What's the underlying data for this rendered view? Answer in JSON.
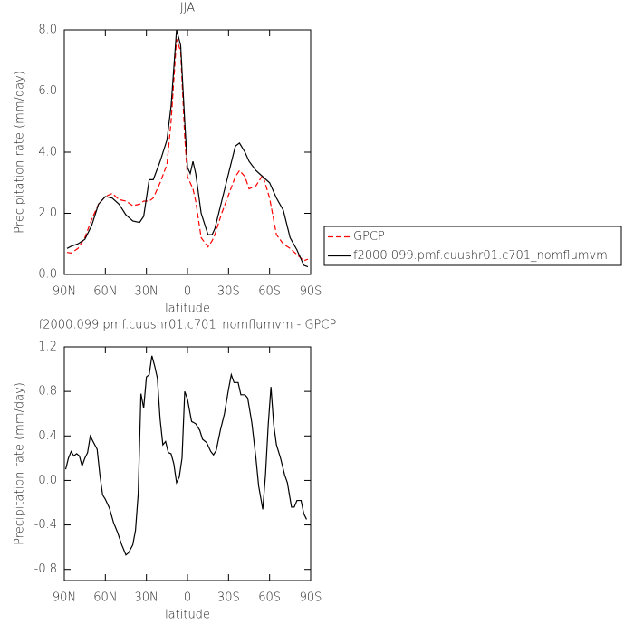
{
  "chart_data": [
    {
      "type": "line",
      "title": "JJA",
      "x_label": "latitude",
      "y_label": "Precipitation rate (mm/day)",
      "xlim": [
        90,
        -90
      ],
      "xticks": [
        {
          "value": 90,
          "label": "90N"
        },
        {
          "value": 60,
          "label": "60N"
        },
        {
          "value": 30,
          "label": "30N"
        },
        0,
        {
          "value": -30,
          "label": "30S"
        },
        {
          "value": -60,
          "label": "60S"
        },
        {
          "value": -90,
          "label": "90S"
        }
      ],
      "ylim": [
        0,
        8
      ],
      "yticks": [
        {
          "value": 0,
          "label": "0.0"
        },
        {
          "value": 2,
          "label": "2.0"
        },
        {
          "value": 4,
          "label": "4.0"
        },
        {
          "value": 6,
          "label": "6.0"
        },
        {
          "value": 8,
          "label": "8.0"
        }
      ],
      "legend": "right",
      "x": [
        88,
        85,
        80,
        75,
        70,
        65,
        60,
        55,
        50,
        45,
        40,
        35,
        32,
        28,
        25,
        20,
        15,
        12,
        8,
        5,
        2,
        0,
        -2,
        -4,
        -6,
        -10,
        -15,
        -18,
        -20,
        -25,
        -30,
        -35,
        -38,
        -42,
        -45,
        -50,
        -55,
        -60,
        -65,
        -70,
        -75,
        -80,
        -85,
        -88
      ],
      "series": [
        {
          "name": "GPCP",
          "color": "#ff0000",
          "line_style": "dashed",
          "values": [
            0.72,
            0.7,
            0.85,
            1.2,
            1.8,
            2.3,
            2.55,
            2.65,
            2.45,
            2.4,
            2.25,
            2.3,
            2.4,
            2.4,
            2.5,
            3.0,
            3.6,
            5.0,
            7.7,
            7.3,
            4.5,
            3.2,
            3.0,
            2.8,
            2.4,
            1.2,
            0.9,
            1.1,
            1.3,
            2.0,
            2.6,
            3.2,
            3.4,
            3.2,
            2.8,
            2.9,
            3.25,
            2.5,
            1.3,
            1.0,
            0.85,
            0.65,
            0.45,
            0.5
          ]
        },
        {
          "name": "f2000.099.pmf.cuushr01.c701_nomflumvm",
          "color": "#000000",
          "line_style": "solid",
          "values": [
            0.85,
            0.92,
            1.0,
            1.15,
            1.6,
            2.3,
            2.55,
            2.5,
            2.3,
            1.95,
            1.75,
            1.7,
            1.9,
            3.1,
            3.1,
            3.7,
            4.4,
            5.5,
            8.0,
            7.5,
            5.0,
            3.5,
            3.3,
            3.7,
            3.3,
            2.0,
            1.3,
            1.3,
            1.5,
            2.4,
            3.3,
            4.2,
            4.3,
            4.0,
            3.7,
            3.4,
            3.2,
            3.0,
            2.5,
            2.1,
            1.2,
            0.8,
            0.3,
            0.25
          ]
        }
      ]
    },
    {
      "type": "line",
      "title": "f2000.099.pmf.cuushr01.c701_nomflumvm - GPCP",
      "x_label": "latitude",
      "y_label": "Precipitation rate (mm/day)",
      "xlim": [
        90,
        -90
      ],
      "xticks": [
        {
          "value": 90,
          "label": "90N"
        },
        {
          "value": 60,
          "label": "60N"
        },
        {
          "value": 30,
          "label": "30N"
        },
        0,
        {
          "value": -30,
          "label": "30S"
        },
        {
          "value": -60,
          "label": "60S"
        },
        {
          "value": -90,
          "label": "90S"
        }
      ],
      "ylim": [
        -0.9,
        1.2
      ],
      "yticks": [
        {
          "value": -0.8,
          "label": "-0.8"
        },
        {
          "value": -0.4,
          "label": "-0.4"
        },
        {
          "value": 0,
          "label": "0.0"
        },
        {
          "value": 0.4,
          "label": "0.4"
        },
        {
          "value": 0.8,
          "label": "0.8"
        },
        {
          "value": 1.2,
          "label": "1.2"
        }
      ],
      "color": "#000000",
      "x": [
        89,
        87,
        85,
        83,
        81,
        79,
        77,
        75,
        73,
        71,
        69,
        66,
        64,
        62,
        60,
        57,
        54,
        51,
        48,
        45,
        43,
        40,
        38,
        36,
        34,
        32,
        30,
        28,
        26,
        24,
        22,
        20,
        18,
        16,
        14,
        12,
        10,
        8,
        6,
        4,
        2,
        0,
        -3,
        -6,
        -9,
        -11,
        -14,
        -17,
        -19,
        -21,
        -24,
        -27,
        -30,
        -32,
        -34,
        -37,
        -39,
        -42,
        -44,
        -47,
        -50,
        -52,
        -55,
        -57,
        -59,
        -61,
        -63,
        -65,
        -68,
        -71,
        -73,
        -76,
        -78,
        -80,
        -83,
        -85,
        -87
      ],
      "values": [
        0.1,
        0.2,
        0.26,
        0.22,
        0.24,
        0.22,
        0.13,
        0.2,
        0.25,
        0.4,
        0.35,
        0.28,
        0.05,
        -0.13,
        -0.17,
        -0.25,
        -0.38,
        -0.47,
        -0.58,
        -0.67,
        -0.65,
        -0.58,
        -0.45,
        -0.12,
        0.78,
        0.65,
        0.93,
        0.95,
        1.12,
        1.03,
        0.92,
        0.55,
        0.32,
        0.35,
        0.25,
        0.24,
        0.15,
        -0.02,
        0.03,
        0.2,
        0.8,
        0.73,
        0.53,
        0.51,
        0.45,
        0.37,
        0.34,
        0.26,
        0.23,
        0.27,
        0.45,
        0.6,
        0.82,
        0.95,
        0.88,
        0.88,
        0.77,
        0.77,
        0.74,
        0.52,
        0.2,
        -0.05,
        -0.26,
        0.05,
        0.5,
        0.84,
        0.5,
        0.32,
        0.2,
        0.05,
        -0.02,
        -0.24,
        -0.24,
        -0.18,
        -0.18,
        -0.3,
        -0.35
      ]
    }
  ]
}
